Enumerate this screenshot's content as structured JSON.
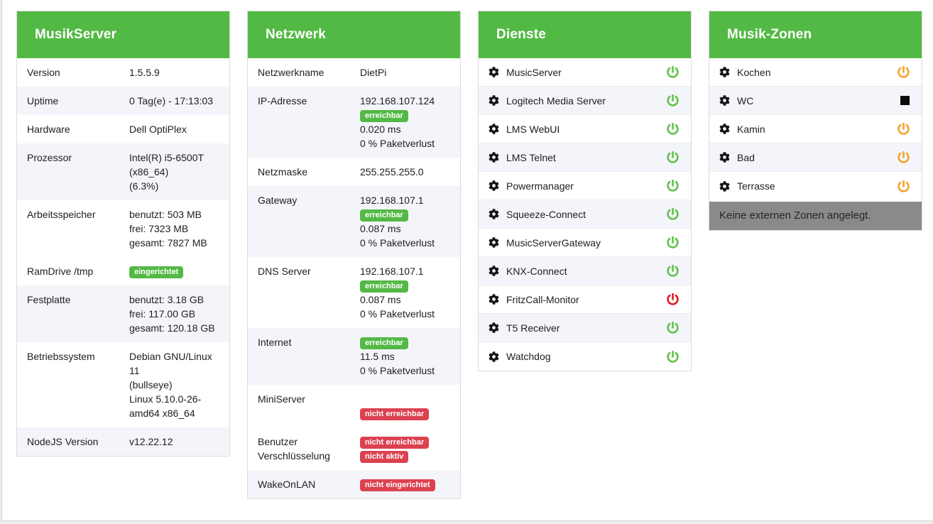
{
  "colors": {
    "header_green": "#53b945",
    "badge_green": "#53b945",
    "badge_red": "#dc4150",
    "power_green": "#62c24e",
    "power_red": "#e11e26",
    "power_orange": "#f5a42c",
    "zone_note_gray": "#8a8a8a",
    "shaded_row": "#f4f5fa"
  },
  "panels": {
    "musikserver": {
      "title": "MusikServer",
      "rows": [
        {
          "label": "Version",
          "shaded": false,
          "lines": [
            {
              "text": "1.5.5.9"
            }
          ]
        },
        {
          "label": "Uptime",
          "shaded": true,
          "lines": [
            {
              "text": "0 Tag(e) - 17:13:03"
            }
          ]
        },
        {
          "label": "Hardware",
          "shaded": false,
          "lines": [
            {
              "text": "Dell OptiPlex"
            }
          ]
        },
        {
          "label": "Prozessor",
          "shaded": true,
          "lines": [
            {
              "text": "Intel(R) i5-6500T"
            },
            {
              "text": "(x86_64)"
            },
            {
              "text": "(6.3%)"
            }
          ]
        },
        {
          "label": "Arbeitsspeicher",
          "shaded": false,
          "lines": [
            {
              "text": "benutzt: 503 MB"
            },
            {
              "text": "frei: 7323 MB"
            },
            {
              "text": "gesamt: 7827 MB"
            }
          ]
        },
        {
          "label": "RamDrive /tmp",
          "shaded": false,
          "lines": [
            {
              "badge": "eingerichtet",
              "variant": "success"
            }
          ]
        },
        {
          "label": "Festplatte",
          "shaded": true,
          "lines": [
            {
              "text": "benutzt: 3.18 GB"
            },
            {
              "text": "frei: 117.00 GB"
            },
            {
              "text": "gesamt: 120.18 GB"
            }
          ]
        },
        {
          "label": "Betriebssystem",
          "shaded": false,
          "lines": [
            {
              "text": "Debian GNU/Linux 11"
            },
            {
              "text": "(bullseye)"
            },
            {
              "text": "Linux 5.10.0-26-"
            },
            {
              "text": "amd64 x86_64"
            }
          ]
        },
        {
          "label": "NodeJS Version",
          "shaded": true,
          "lines": [
            {
              "text": "v12.22.12"
            }
          ]
        }
      ]
    },
    "netzwerk": {
      "title": "Netzwerk",
      "rows": [
        {
          "label": "Netzwerkname",
          "shaded": false,
          "lines": [
            {
              "text": "DietPi"
            }
          ]
        },
        {
          "label": "IP-Adresse",
          "shaded": true,
          "lines": [
            {
              "text": "192.168.107.124"
            },
            {
              "badge": "erreichbar",
              "variant": "success"
            },
            {
              "text": "0.020 ms"
            },
            {
              "text": "0 % Paketverlust"
            }
          ]
        },
        {
          "label": "Netzmaske",
          "shaded": false,
          "lines": [
            {
              "text": "255.255.255.0"
            }
          ]
        },
        {
          "label": "Gateway",
          "shaded": true,
          "lines": [
            {
              "text": "192.168.107.1"
            },
            {
              "badge": "erreichbar",
              "variant": "success"
            },
            {
              "text": "0.087 ms"
            },
            {
              "text": "0 % Paketverlust"
            }
          ]
        },
        {
          "label": "DNS Server",
          "shaded": false,
          "lines": [
            {
              "text": "192.168.107.1"
            },
            {
              "badge": "erreichbar",
              "variant": "success"
            },
            {
              "text": "0.087 ms"
            },
            {
              "text": "0 % Paketverlust"
            }
          ]
        },
        {
          "label": "Internet",
          "shaded": true,
          "lines": [
            {
              "badge": "erreichbar",
              "variant": "success"
            },
            {
              "text": "11.5 ms"
            },
            {
              "text": "0 % Paketverlust"
            }
          ]
        },
        {
          "label": "MiniServer",
          "shaded": false,
          "lines": [
            {
              "text": ""
            },
            {
              "badge": "nicht erreichbar",
              "variant": "danger"
            }
          ]
        },
        {
          "label_lines": [
            "Benutzer",
            "Verschlüsselung"
          ],
          "shaded": false,
          "lines": [
            {
              "badge": "nicht erreichbar",
              "variant": "danger"
            },
            {
              "badge": "nicht aktiv",
              "variant": "danger"
            }
          ]
        },
        {
          "label": "WakeOnLAN",
          "shaded": true,
          "lines": [
            {
              "badge": "nicht eingerichtet",
              "variant": "danger"
            }
          ]
        }
      ]
    },
    "dienste": {
      "title": "Dienste",
      "items": [
        {
          "name": "MusicServer",
          "icon": "power",
          "color": "green"
        },
        {
          "name": "Logitech Media Server",
          "icon": "power",
          "color": "green"
        },
        {
          "name": "LMS WebUI",
          "icon": "power",
          "color": "green"
        },
        {
          "name": "LMS Telnet",
          "icon": "power",
          "color": "green"
        },
        {
          "name": "Powermanager",
          "icon": "power",
          "color": "green"
        },
        {
          "name": "Squeeze-Connect",
          "icon": "power",
          "color": "green"
        },
        {
          "name": "MusicServerGateway",
          "icon": "power",
          "color": "green"
        },
        {
          "name": "KNX-Connect",
          "icon": "power",
          "color": "green"
        },
        {
          "name": "FritzCall-Monitor",
          "icon": "power",
          "color": "red"
        },
        {
          "name": "T5 Receiver",
          "icon": "power",
          "color": "green"
        },
        {
          "name": "Watchdog",
          "icon": "power",
          "color": "green"
        }
      ]
    },
    "zonen": {
      "title": "Musik-Zonen",
      "items": [
        {
          "name": "Kochen",
          "icon": "power",
          "color": "orange"
        },
        {
          "name": "WC",
          "icon": "stop",
          "color": "black"
        },
        {
          "name": "Kamin",
          "icon": "power",
          "color": "orange"
        },
        {
          "name": "Bad",
          "icon": "power",
          "color": "orange"
        },
        {
          "name": "Terrasse",
          "icon": "power",
          "color": "orange"
        }
      ],
      "empty_note": "Keine externen Zonen angelegt."
    }
  }
}
